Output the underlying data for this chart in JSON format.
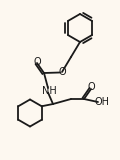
{
  "background_color": "#fdf8f0",
  "line_color": "#1a1a1a",
  "line_width": 1.3,
  "fig_width": 1.2,
  "fig_height": 1.6,
  "dpi": 100,
  "xlim": [
    0,
    12
  ],
  "ylim": [
    0,
    16
  ]
}
